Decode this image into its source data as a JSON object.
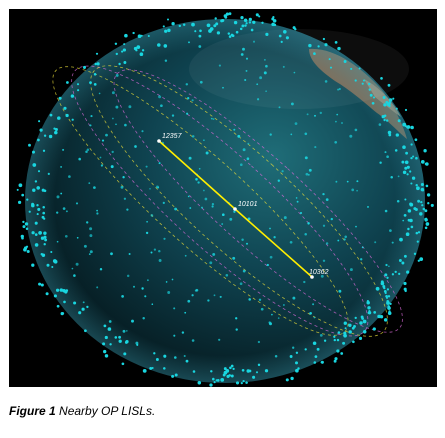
{
  "caption": {
    "label": "Figure 1",
    "text": "Nearby OP LISLs."
  },
  "satellites": [
    {
      "label": "12357"
    },
    {
      "label": "10101"
    },
    {
      "label": "10362"
    }
  ],
  "colors": {
    "background": "#000000",
    "sat_dots": "#19d6e0",
    "orbit_yellow": "#e8dc3a",
    "orbit_magenta": "#d86ad8",
    "link": "#ffee00",
    "earth_ocean": "#0c3b47",
    "earth_land": "#8a6e56"
  }
}
